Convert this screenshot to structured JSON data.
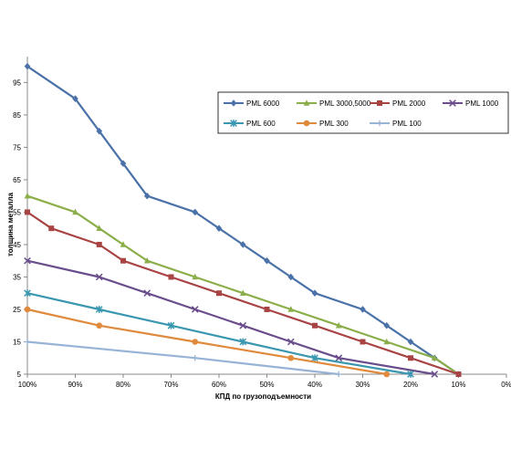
{
  "chart_data": {
    "type": "line",
    "xlabel": "КПД по грузоподъемности",
    "ylabel": "толщина металла",
    "x_ticks": [
      "100%",
      "90%",
      "80%",
      "70%",
      "60%",
      "50%",
      "40%",
      "30%",
      "20%",
      "10%",
      "0%"
    ],
    "xlim": [
      100,
      0
    ],
    "y_ticks": [
      5,
      15,
      25,
      35,
      45,
      55,
      65,
      75,
      85,
      95
    ],
    "ylim": [
      5,
      103
    ],
    "grid": false,
    "legend_position": "top-right",
    "series": [
      {
        "name": "PML 6000",
        "color": "#4a72a8",
        "marker": "diamond",
        "points": [
          [
            100,
            100
          ],
          [
            90,
            90
          ],
          [
            85,
            80
          ],
          [
            80,
            70
          ],
          [
            75,
            60
          ],
          [
            65,
            55
          ],
          [
            60,
            50
          ],
          [
            55,
            45
          ],
          [
            50,
            40
          ],
          [
            45,
            35
          ],
          [
            40,
            30
          ],
          [
            30,
            25
          ],
          [
            25,
            20
          ],
          [
            20,
            15
          ],
          [
            15,
            10
          ],
          [
            10,
            5
          ]
        ]
      },
      {
        "name": "PML 3000,5000",
        "color": "#8bae4a",
        "marker": "triangle",
        "points": [
          [
            100,
            60
          ],
          [
            90,
            55
          ],
          [
            85,
            50
          ],
          [
            80,
            45
          ],
          [
            75,
            40
          ],
          [
            65,
            35
          ],
          [
            55,
            30
          ],
          [
            45,
            25
          ],
          [
            35,
            20
          ],
          [
            25,
            15
          ],
          [
            15,
            10
          ],
          [
            10,
            5
          ]
        ]
      },
      {
        "name": "PML 2000",
        "color": "#a94444",
        "marker": "square",
        "points": [
          [
            100,
            55
          ],
          [
            95,
            50
          ],
          [
            85,
            45
          ],
          [
            80,
            40
          ],
          [
            70,
            35
          ],
          [
            60,
            30
          ],
          [
            50,
            25
          ],
          [
            40,
            20
          ],
          [
            30,
            15
          ],
          [
            20,
            10
          ],
          [
            10,
            5
          ]
        ]
      },
      {
        "name": "PML 1000",
        "color": "#6a4e8c",
        "marker": "x",
        "points": [
          [
            100,
            40
          ],
          [
            85,
            35
          ],
          [
            75,
            30
          ],
          [
            65,
            25
          ],
          [
            55,
            20
          ],
          [
            45,
            15
          ],
          [
            35,
            10
          ],
          [
            15,
            5
          ]
        ]
      },
      {
        "name": "PML 600",
        "color": "#3b97b0",
        "marker": "star",
        "points": [
          [
            100,
            30
          ],
          [
            85,
            25
          ],
          [
            70,
            20
          ],
          [
            55,
            15
          ],
          [
            40,
            10
          ],
          [
            20,
            5
          ]
        ]
      },
      {
        "name": "PML 300",
        "color": "#df8a3c",
        "marker": "circle",
        "points": [
          [
            100,
            25
          ],
          [
            85,
            20
          ],
          [
            65,
            15
          ],
          [
            45,
            10
          ],
          [
            25,
            5
          ]
        ]
      },
      {
        "name": "PML 100",
        "color": "#97b3d6",
        "marker": "plus",
        "points": [
          [
            100,
            15
          ],
          [
            65,
            10
          ],
          [
            35,
            5
          ]
        ]
      }
    ]
  }
}
